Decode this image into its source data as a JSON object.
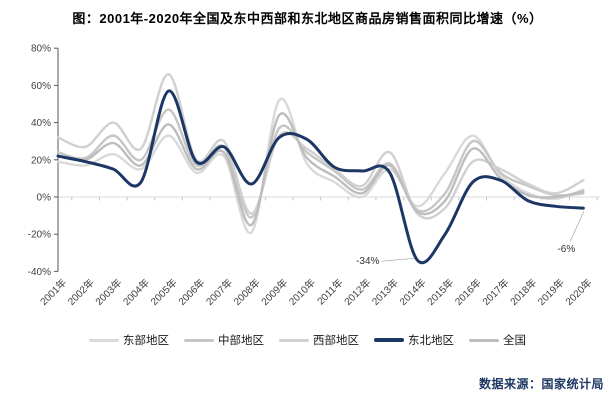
{
  "title": "图：2001年-2020年全国及东中西部和东北地区商品房销售面积同比增速（%）",
  "footer": {
    "source_label": "数据来源：国家统计局"
  },
  "colors": {
    "accent_navy": "#1c3765",
    "gray_light": "#d9d9d9",
    "gray_mid": "#c6c6c6",
    "axis": "#595959",
    "zero_line": "#d9d9d9"
  },
  "chart_data": {
    "type": "line",
    "title": "图：2001年-2020年全国及东中西部和东北地区商品房销售面积同比增速（%）",
    "xlabel": "",
    "ylabel": "",
    "ylim": [
      -40,
      80
    ],
    "grid": "zero-line-only",
    "legend_position": "bottom",
    "categories": [
      "2001年",
      "2002年",
      "2003年",
      "2004年",
      "2005年",
      "2006年",
      "2007年",
      "2008年",
      "2009年",
      "2010年",
      "2011年",
      "2012年",
      "2013年",
      "2014年",
      "2015年",
      "2016年",
      "2017年",
      "2018年",
      "2019年",
      "2020年"
    ],
    "y_ticks": [
      {
        "label": "80%",
        "value": 80
      },
      {
        "label": "60%",
        "value": 60
      },
      {
        "label": "40%",
        "value": 40
      },
      {
        "label": "20%",
        "value": 20
      },
      {
        "label": "0%",
        "value": 0
      },
      {
        "label": "-20%",
        "value": -20
      },
      {
        "label": "-40%",
        "value": -40
      }
    ],
    "series": [
      {
        "name": "东部地区",
        "key": "east",
        "color": "#d9d9d9",
        "width": 2.4,
        "values": [
          19,
          17,
          23,
          15,
          33,
          13,
          22,
          -19,
          52,
          18,
          8,
          0,
          15,
          -5,
          13,
          33,
          12,
          2,
          -1,
          4
        ]
      },
      {
        "name": "中部地区",
        "key": "central",
        "color": "#c6c6c6",
        "width": 2.4,
        "values": [
          24,
          21,
          33,
          20,
          47,
          17,
          27,
          -11,
          37,
          24,
          14,
          4,
          18,
          -7,
          2,
          30,
          13,
          6,
          1,
          2
        ]
      },
      {
        "name": "西部地区",
        "key": "west",
        "color": "#d0d0d0",
        "width": 2.4,
        "values": [
          32,
          27,
          40,
          26,
          66,
          20,
          30,
          -9,
          33,
          26,
          15,
          6,
          24,
          -9,
          -6,
          19,
          15,
          7,
          2,
          9
        ]
      },
      {
        "name": "东北地区",
        "key": "northeast",
        "color": "#1c3765",
        "width": 3,
        "values": [
          22,
          19,
          15,
          8,
          57,
          19,
          27,
          7,
          32,
          31,
          16,
          14,
          13,
          -34,
          -20,
          8,
          9,
          -2,
          -5,
          -6
        ]
      },
      {
        "name": "全国",
        "key": "national",
        "color": "#bdbdbd",
        "width": 2.4,
        "values": [
          22,
          20,
          29,
          17,
          39,
          15,
          24,
          -15,
          44,
          21,
          11,
          2,
          17,
          -8,
          -2,
          26,
          10,
          1,
          0,
          3
        ]
      }
    ],
    "annotations": [
      {
        "text": "-34%",
        "series": "northeast",
        "year_index": 13
      },
      {
        "text": "-6%",
        "series": "northeast",
        "year_index": 19
      }
    ]
  }
}
